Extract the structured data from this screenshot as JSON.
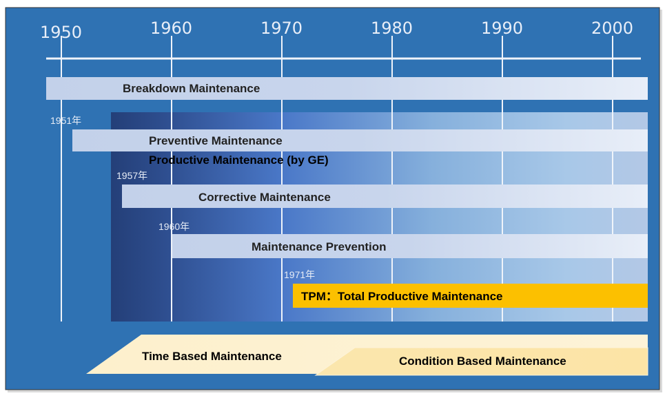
{
  "timeline": {
    "years": [
      "1950",
      "1960",
      "1970",
      "1980",
      "1990",
      "2000"
    ]
  },
  "bars": {
    "breakdown": "Breakdown Maintenance",
    "preventive": "Preventive Maintenance",
    "productive": "Productive Maintenance (by GE)",
    "corrective": "Corrective Maintenance",
    "prevention": "Maintenance Prevention",
    "tpm": "TPM：Total  Productive Maintenance"
  },
  "start_years": {
    "preventive": "1951年",
    "corrective": "1957年",
    "prevention": "1960年",
    "tpm": "1971年"
  },
  "bottom": {
    "time_based": "Time Based Maintenance",
    "condition_based": "Condition Based Maintenance"
  },
  "colors": {
    "panel": "#2f72b3",
    "bar": "#c9d6ec",
    "tpm": "#fcc000",
    "band": "#fcedc2"
  }
}
